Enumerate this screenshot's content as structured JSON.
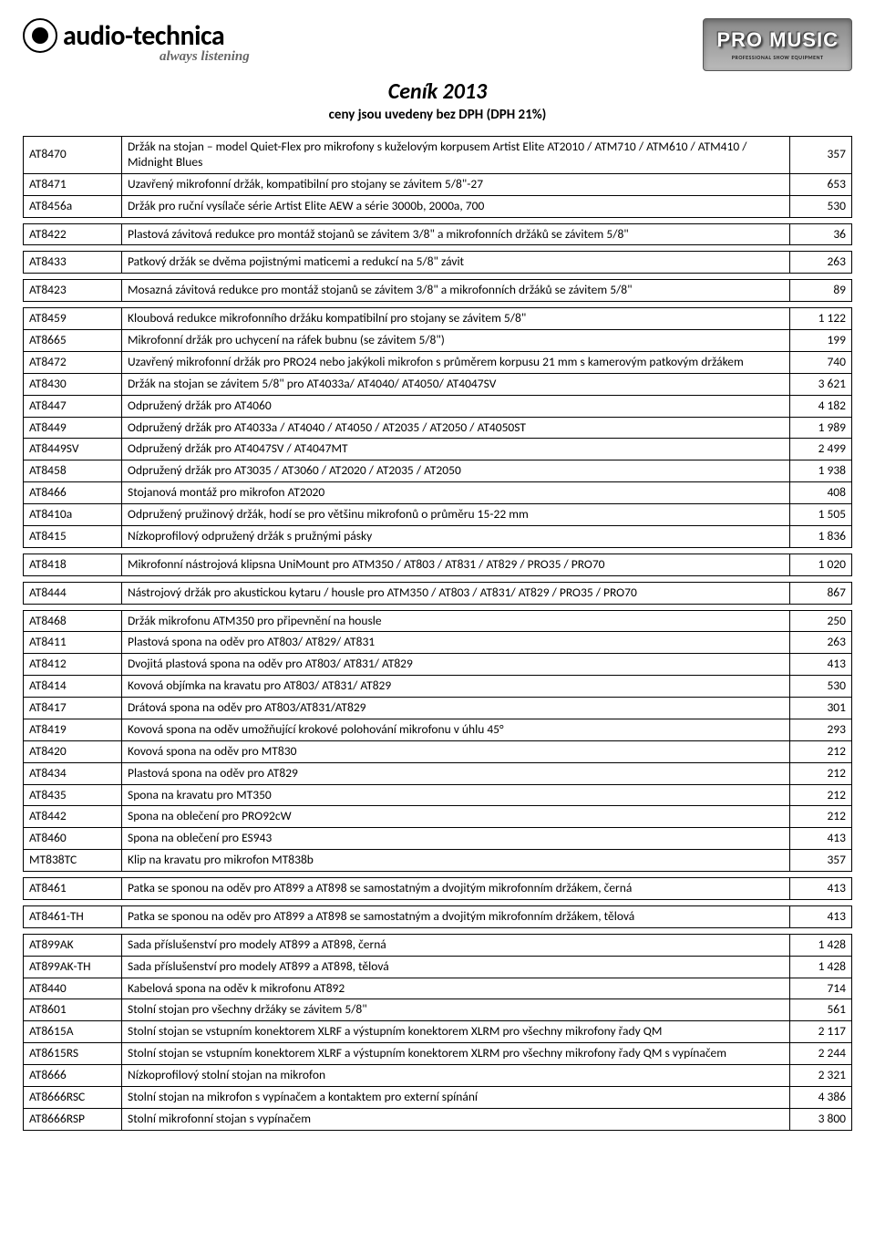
{
  "header": {
    "brand": "audio-technica",
    "tagline": "always listening",
    "logo2_main": "PRO MUSIC",
    "logo2_sub": "PROFESSIONAL SHOW EQUIPMENT"
  },
  "title": {
    "main": "Ceník 2013",
    "sub": "ceny jsou uvedeny bez DPH (DPH 21%)"
  },
  "col_widths": {
    "code": 95,
    "price": 55
  },
  "rows": [
    {
      "code": "AT8470",
      "desc": "Držák na stojan – model Quiet-Flex pro mikrofony s kuželovým korpusem Artist Elite AT2010 / ATM710 / ATM610 / ATM410 / Midnight Blues",
      "price": "357"
    },
    {
      "code": "AT8471",
      "desc": "Uzavřený mikrofonní držák, kompatibilní pro stojany se závitem 5/8\"-27",
      "price": "653"
    },
    {
      "code": "AT8456a",
      "desc": "Držák pro ruční vysílače série Artist Elite AEW a série 3000b, 2000a, 700",
      "price": "530"
    },
    {
      "gap": true
    },
    {
      "code": "AT8422",
      "desc": "Plastová závitová redukce pro montáž stojanů se závitem 3/8\" a mikrofonních držáků se závitem 5/8\"",
      "price": "36"
    },
    {
      "gap": true
    },
    {
      "code": "AT8433",
      "desc": "Patkový držák se dvěma pojistnými maticemi a redukcí na 5/8\" závit",
      "price": "263"
    },
    {
      "gap": true
    },
    {
      "code": "AT8423",
      "desc": "Mosazná závitová redukce pro montáž stojanů se závitem 3/8\" a mikrofonních držáků se závitem 5/8\"",
      "price": "89"
    },
    {
      "gap": true
    },
    {
      "code": "AT8459",
      "desc": "Kloubová redukce mikrofonního držáku kompatibilní pro stojany se závitem 5/8\"",
      "price": "1 122"
    },
    {
      "code": "AT8665",
      "desc": "Mikrofonní držák pro uchycení na ráfek bubnu (se závitem 5/8\")",
      "price": "199"
    },
    {
      "code": "AT8472",
      "desc": "Uzavřený mikrofonní držák pro PRO24 nebo jakýkoli mikrofon s průměrem korpusu 21 mm s kamerovým patkovým držákem",
      "price": "740"
    },
    {
      "code": "AT8430",
      "desc": "Držák na stojan se závitem 5/8\" pro AT4033a/ AT4040/ AT4050/ AT4047SV",
      "price": "3 621"
    },
    {
      "code": "AT8447",
      "desc": "Odpružený držák pro AT4060",
      "price": "4 182"
    },
    {
      "code": "AT8449",
      "desc": "Odpružený držák pro AT4033a / AT4040 / AT4050 / AT2035 / AT2050 / AT4050ST",
      "price": "1 989"
    },
    {
      "code": "AT8449SV",
      "desc": "Odpružený držák pro AT4047SV / AT4047MT",
      "price": "2 499"
    },
    {
      "code": "AT8458",
      "desc": "Odpružený držák pro AT3035 / AT3060 / AT2020 / AT2035 / AT2050",
      "price": "1 938"
    },
    {
      "code": "AT8466",
      "desc": "Stojanová montáž pro mikrofon AT2020",
      "price": "408"
    },
    {
      "code": "AT8410a",
      "desc": "Odpružený pružinový držák, hodí se pro většinu mikrofonů o průměru 15-22 mm",
      "price": "1 505"
    },
    {
      "code": "AT8415",
      "desc": "Nízkoprofilový odpružený držák s pružnými pásky",
      "price": "1 836"
    },
    {
      "gap": true
    },
    {
      "code": "AT8418",
      "desc": "Mikrofonní nástrojová klipsna UniMount pro ATM350 / AT803 / AT831 / AT829 / PRO35 / PRO70",
      "price": "1 020"
    },
    {
      "gap": true
    },
    {
      "code": "AT8444",
      "desc": "Nástrojový držák pro akustickou kytaru / housle pro ATM350 / AT803 / AT831/ AT829 / PRO35 / PRO70",
      "price": "867"
    },
    {
      "gap": true
    },
    {
      "code": "AT8468",
      "desc": "Držák mikrofonu ATM350 pro připevnění na housle",
      "price": "250"
    },
    {
      "code": "AT8411",
      "desc": "Plastová spona na oděv pro AT803/ AT829/ AT831",
      "price": "263"
    },
    {
      "code": "AT8412",
      "desc": "Dvojitá plastová spona na oděv pro AT803/ AT831/ AT829",
      "price": "413"
    },
    {
      "code": "AT8414",
      "desc": "Kovová objímka na kravatu pro AT803/ AT831/ AT829",
      "price": "530"
    },
    {
      "code": "AT8417",
      "desc": "Drátová spona na oděv pro AT803/AT831/AT829",
      "price": "301"
    },
    {
      "code": "AT8419",
      "desc": "Kovová spona na oděv umožňující krokové polohování mikrofonu v úhlu 45°",
      "price": "293"
    },
    {
      "code": "AT8420",
      "desc": "Kovová spona na oděv pro MT830",
      "price": "212"
    },
    {
      "code": "AT8434",
      "desc": "Plastová spona na oděv pro AT829",
      "price": "212"
    },
    {
      "code": "AT8435",
      "desc": "Spona na kravatu pro MT350",
      "price": "212"
    },
    {
      "code": "AT8442",
      "desc": "Spona na oblečení pro PRO92cW",
      "price": "212"
    },
    {
      "code": "AT8460",
      "desc": "Spona na oblečení pro ES943",
      "price": "413"
    },
    {
      "code": "MT838TC",
      "desc": "Klip na kravatu pro mikrofon MT838b",
      "price": "357"
    },
    {
      "gap": true
    },
    {
      "code": "AT8461",
      "desc": "Patka se sponou na oděv pro AT899 a AT898 se samostatným a dvojitým mikrofonním držákem, černá",
      "price": "413"
    },
    {
      "gap": true
    },
    {
      "code": "AT8461-TH",
      "desc": "Patka se sponou na oděv pro AT899 a AT898 se samostatným a dvojitým mikrofonním držákem, tělová",
      "price": "413"
    },
    {
      "gap": true
    },
    {
      "code": "AT899AK",
      "desc": "Sada příslušenství pro modely AT899 a AT898, černá",
      "price": "1 428"
    },
    {
      "code": "AT899AK-TH",
      "desc": "Sada příslušenství pro modely AT899 a AT898, tělová",
      "price": "1 428"
    },
    {
      "code": "AT8440",
      "desc": "Kabelová spona na oděv k mikrofonu AT892",
      "price": "714"
    },
    {
      "code": "AT8601",
      "desc": "Stolní stojan pro všechny držáky se závitem 5/8\"",
      "price": "561"
    },
    {
      "code": "AT8615A",
      "desc": "Stolní stojan se vstupním konektorem XLRF a výstupním konektorem XLRM pro všechny mikrofony řady QM",
      "price": "2 117"
    },
    {
      "code": "AT8615RS",
      "desc": "Stolní stojan se vstupním konektorem XLRF a výstupním konektorem XLRM pro všechny mikrofony řady QM s vypínačem",
      "price": "2 244"
    },
    {
      "code": "AT8666",
      "desc": "Nízkoprofilový stolní stojan na mikrofon",
      "price": "2 321"
    },
    {
      "code": "AT8666RSC",
      "desc": "Stolní stojan na mikrofon s vypínačem a kontaktem pro externí spínání",
      "price": "4 386"
    },
    {
      "code": "AT8666RSP",
      "desc": "Stolní mikrofonní stojan s vypínačem",
      "price": "3 800"
    }
  ]
}
